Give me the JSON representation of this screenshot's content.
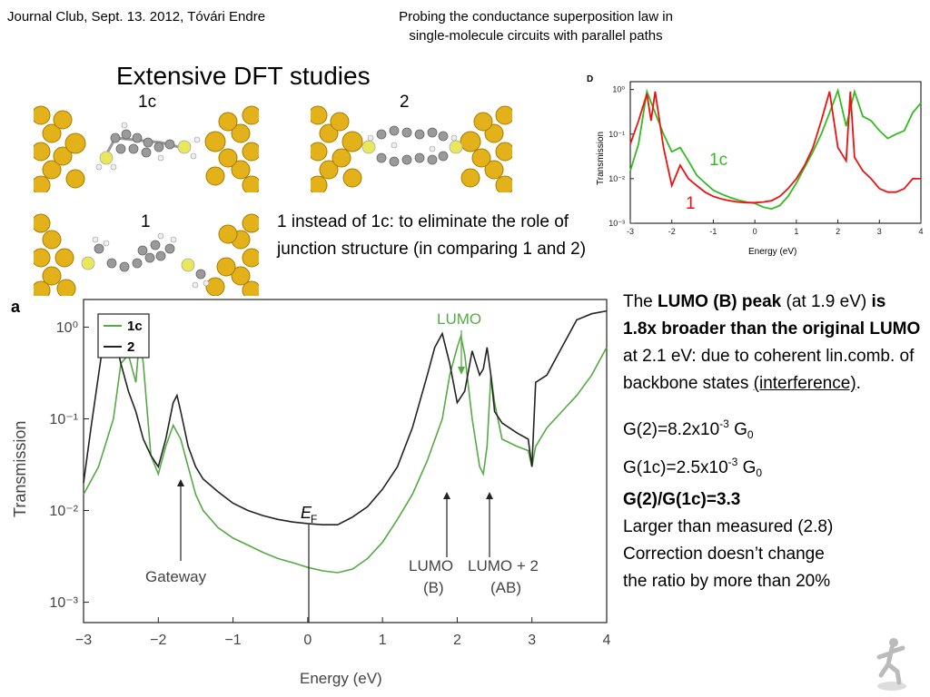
{
  "header": {
    "left": "Journal Club, Sept. 13. 2012, Tóvári Endre",
    "title_line1": "Probing the conductance superposition law in",
    "title_line2": "single-molecule circuits with parallel paths"
  },
  "section_title": "Extensive DFT studies",
  "molecules": [
    {
      "label": "1c"
    },
    {
      "label": "2"
    },
    {
      "label": "1"
    }
  ],
  "intro_text": "1 instead of 1c: to eliminate the role of junction structure (in comparing 1 and 2)",
  "right_text": {
    "p1_the": "The ",
    "p1_bold1": "LUMO (B) peak",
    "p1_at": " (at 1.9 eV) ",
    "p1_bold2": "is 1.8x broader than the original LUMO",
    "p1_rest": " at 2.1 eV: due to coherent lin.comb. of backbone states ",
    "p1_interference": "(interference)",
    "p1_dot": ".",
    "g2_pre": "G(2)=8.2x10",
    "g2_exp": "-3",
    "g2_g": " G",
    "g2_sub": "0",
    "g1c_pre": "G(1c)=2.5x10",
    "g1c_exp": "-3",
    "g1c_g": " G",
    "g1c_sub": "0",
    "ratio": "G(2)/G(1c)=3.3",
    "larger": "Larger than measured (2.8)",
    "correction1": "Correction doesn’t change",
    "correction2": "the ratio by more than 20%"
  },
  "chart_data": [
    {
      "type": "line",
      "panel": "D",
      "xlabel": "Energy (eV)",
      "ylabel": "Transmission",
      "x_ticks": [
        "-3",
        "-2",
        "-1",
        "0",
        "1",
        "2",
        "3",
        "4"
      ],
      "y_ticks": [
        "10⁻³",
        "10⁻²",
        "10⁻¹",
        "10⁰"
      ],
      "xlim": [
        -3,
        4
      ],
      "ylim": [
        0.001,
        1.5
      ],
      "y_scale": "log",
      "colors": {
        "1c": "#33bb22",
        "1": "#ee1111"
      },
      "series": [
        {
          "name": "1c",
          "x": [
            -3,
            -2.8,
            -2.6,
            -2.4,
            -2.2,
            -2.0,
            -1.8,
            -1.6,
            -1.4,
            -1.2,
            -1.0,
            -0.8,
            -0.6,
            -0.4,
            -0.2,
            0,
            0.2,
            0.4,
            0.6,
            0.8,
            1.0,
            1.2,
            1.4,
            1.6,
            1.8,
            2.0,
            2.2,
            2.4,
            2.6,
            2.8,
            3.0,
            3.2,
            3.4,
            3.6,
            3.8,
            4.0
          ],
          "y": [
            0.015,
            0.06,
            0.9,
            0.3,
            0.1,
            0.04,
            0.05,
            0.025,
            0.012,
            0.008,
            0.0055,
            0.0045,
            0.0038,
            0.0033,
            0.003,
            0.0028,
            0.0023,
            0.0021,
            0.0025,
            0.004,
            0.008,
            0.018,
            0.04,
            0.1,
            0.3,
            0.95,
            0.15,
            0.9,
            0.25,
            0.2,
            0.12,
            0.08,
            0.1,
            0.12,
            0.3,
            0.5
          ]
        },
        {
          "name": "1",
          "x": [
            -3,
            -2.8,
            -2.6,
            -2.5,
            -2.4,
            -2.2,
            -2.0,
            -1.8,
            -1.6,
            -1.4,
            -1.2,
            -1.0,
            -0.8,
            -0.6,
            -0.4,
            -0.2,
            0,
            0.2,
            0.4,
            0.6,
            0.8,
            1.0,
            1.2,
            1.4,
            1.6,
            1.8,
            2.0,
            2.2,
            2.3,
            2.4,
            2.6,
            2.8,
            3.0,
            3.2,
            3.4,
            3.6,
            3.8,
            4.0
          ],
          "y": [
            0.06,
            0.2,
            0.8,
            0.2,
            0.9,
            0.05,
            0.007,
            0.02,
            0.01,
            0.007,
            0.005,
            0.004,
            0.0035,
            0.0032,
            0.003,
            0.0029,
            0.0029,
            0.003,
            0.0032,
            0.004,
            0.006,
            0.01,
            0.02,
            0.05,
            0.2,
            0.9,
            0.05,
            0.025,
            0.9,
            0.03,
            0.015,
            0.01,
            0.006,
            0.005,
            0.005,
            0.006,
            0.01,
            0.01
          ]
        }
      ],
      "annotations": [
        {
          "text": "1c",
          "color": "#33bb22"
        },
        {
          "text": "1",
          "color": "#ee1111"
        }
      ]
    },
    {
      "type": "line",
      "panel": "a",
      "xlabel": "Energy (eV)",
      "ylabel": "Transmission",
      "x_ticks": [
        "−3",
        "−2",
        "−1",
        "0",
        "1",
        "2",
        "3",
        "4"
      ],
      "y_ticks": [
        "10⁻³",
        "10⁻²",
        "10⁻¹",
        "10⁰"
      ],
      "xlim": [
        -3,
        4
      ],
      "ylim": [
        0.0006,
        2
      ],
      "y_scale": "log",
      "legend": "top-left",
      "colors": {
        "1c": "#55aa44",
        "2": "#222222"
      },
      "series": [
        {
          "name": "1c",
          "x": [
            -3,
            -2.8,
            -2.6,
            -2.5,
            -2.4,
            -2.3,
            -2.25,
            -2.2,
            -2.1,
            -2.0,
            -1.9,
            -1.8,
            -1.7,
            -1.6,
            -1.5,
            -1.4,
            -1.2,
            -1.0,
            -0.8,
            -0.6,
            -0.4,
            -0.2,
            0,
            0.2,
            0.4,
            0.6,
            0.8,
            1.0,
            1.2,
            1.4,
            1.6,
            1.8,
            1.9,
            2.0,
            2.05,
            2.1,
            2.2,
            2.3,
            2.35,
            2.4,
            2.45,
            2.5,
            2.6,
            2.8,
            2.95,
            3.0,
            3.05,
            3.2,
            3.4,
            3.6,
            3.8,
            4.0
          ],
          "y": [
            0.015,
            0.03,
            0.1,
            0.4,
            0.5,
            0.25,
            0.8,
            0.4,
            0.04,
            0.025,
            0.05,
            0.085,
            0.06,
            0.03,
            0.015,
            0.01,
            0.0065,
            0.005,
            0.0042,
            0.0035,
            0.003,
            0.0027,
            0.0024,
            0.0022,
            0.0021,
            0.0023,
            0.003,
            0.0045,
            0.008,
            0.015,
            0.035,
            0.1,
            0.3,
            0.6,
            0.8,
            0.5,
            0.1,
            0.03,
            0.025,
            0.05,
            0.3,
            0.15,
            0.06,
            0.05,
            0.045,
            0.03,
            0.05,
            0.08,
            0.12,
            0.18,
            0.3,
            0.6
          ]
        },
        {
          "name": "2",
          "x": [
            -3,
            -2.9,
            -2.8,
            -2.7,
            -2.65,
            -2.6,
            -2.5,
            -2.4,
            -2.3,
            -2.2,
            -2.1,
            -2.0,
            -1.9,
            -1.8,
            -1.75,
            -1.7,
            -1.6,
            -1.5,
            -1.4,
            -1.2,
            -1.0,
            -0.8,
            -0.6,
            -0.4,
            -0.2,
            0,
            0.2,
            0.4,
            0.6,
            0.8,
            1.0,
            1.2,
            1.4,
            1.6,
            1.7,
            1.8,
            1.9,
            2.0,
            2.1,
            2.2,
            2.3,
            2.35,
            2.4,
            2.45,
            2.5,
            2.6,
            2.8,
            2.95,
            3.0,
            3.05,
            3.2,
            3.4,
            3.6,
            3.8,
            4.0
          ],
          "y": [
            0.02,
            0.08,
            0.3,
            1.1,
            1.2,
            0.9,
            0.4,
            0.2,
            0.12,
            0.06,
            0.04,
            0.03,
            0.06,
            0.15,
            0.18,
            0.12,
            0.05,
            0.03,
            0.022,
            0.016,
            0.012,
            0.01,
            0.0088,
            0.008,
            0.0075,
            0.0072,
            0.007,
            0.007,
            0.0085,
            0.011,
            0.017,
            0.03,
            0.08,
            0.3,
            0.6,
            0.85,
            0.4,
            0.15,
            0.2,
            0.55,
            0.3,
            0.35,
            0.6,
            0.3,
            0.12,
            0.09,
            0.07,
            0.06,
            0.03,
            0.25,
            0.3,
            0.6,
            1.2,
            1.4,
            1.5
          ]
        }
      ],
      "annotations": [
        {
          "text": "LUMO",
          "color": "#55aa44",
          "x": 2.05
        },
        {
          "text": "E",
          "sub": "F",
          "x": 0
        },
        {
          "text": "Gateway",
          "x": -1.7
        },
        {
          "text": "LUMO",
          "line2": "(B)",
          "x": 1.85
        },
        {
          "text": "LUMO + 2",
          "line2": "(AB)",
          "x": 2.43
        }
      ]
    }
  ]
}
